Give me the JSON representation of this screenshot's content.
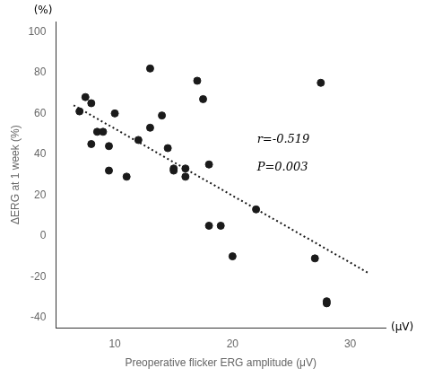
{
  "chart_data": {
    "type": "scatter",
    "xlabel": "Preoperative flicker ERG amplitude (μV)",
    "ylabel": "ΔERG at 1 week (%)",
    "annotations": [
      "r=-0.519",
      "P=0.003"
    ],
    "x_unit": "(μV)",
    "y_unit": "(%)",
    "series": [
      {
        "type": "scatter",
        "marker": "circle",
        "color": "#1a1a1a",
        "x": [
          7,
          7.5,
          8,
          8,
          8.5,
          9,
          9.5,
          9.5,
          10,
          11,
          12,
          13,
          13,
          14,
          14.5,
          15,
          15,
          16,
          16,
          17,
          17.5,
          18,
          18,
          19,
          20,
          22,
          27,
          27.5,
          28,
          28
        ],
        "values": [
          61,
          68,
          65,
          45,
          51,
          51,
          44,
          32,
          60,
          29,
          47,
          53,
          82,
          59,
          43,
          33,
          32,
          33,
          29,
          76,
          67,
          35,
          5,
          5,
          -10,
          13,
          -11,
          75,
          -33,
          -32
        ]
      },
      {
        "type": "line",
        "line_style": "dotted",
        "color": "#1a1a1a",
        "x": [
          6.5,
          31.5
        ],
        "values": [
          64,
          -18
        ]
      }
    ],
    "xlim": [
      5,
      33
    ],
    "ylim": [
      -45,
      105
    ],
    "xticks": [
      10,
      20,
      30
    ],
    "yticks": [
      -40,
      -20,
      0,
      20,
      40,
      60,
      80,
      100
    ],
    "grid": false
  }
}
